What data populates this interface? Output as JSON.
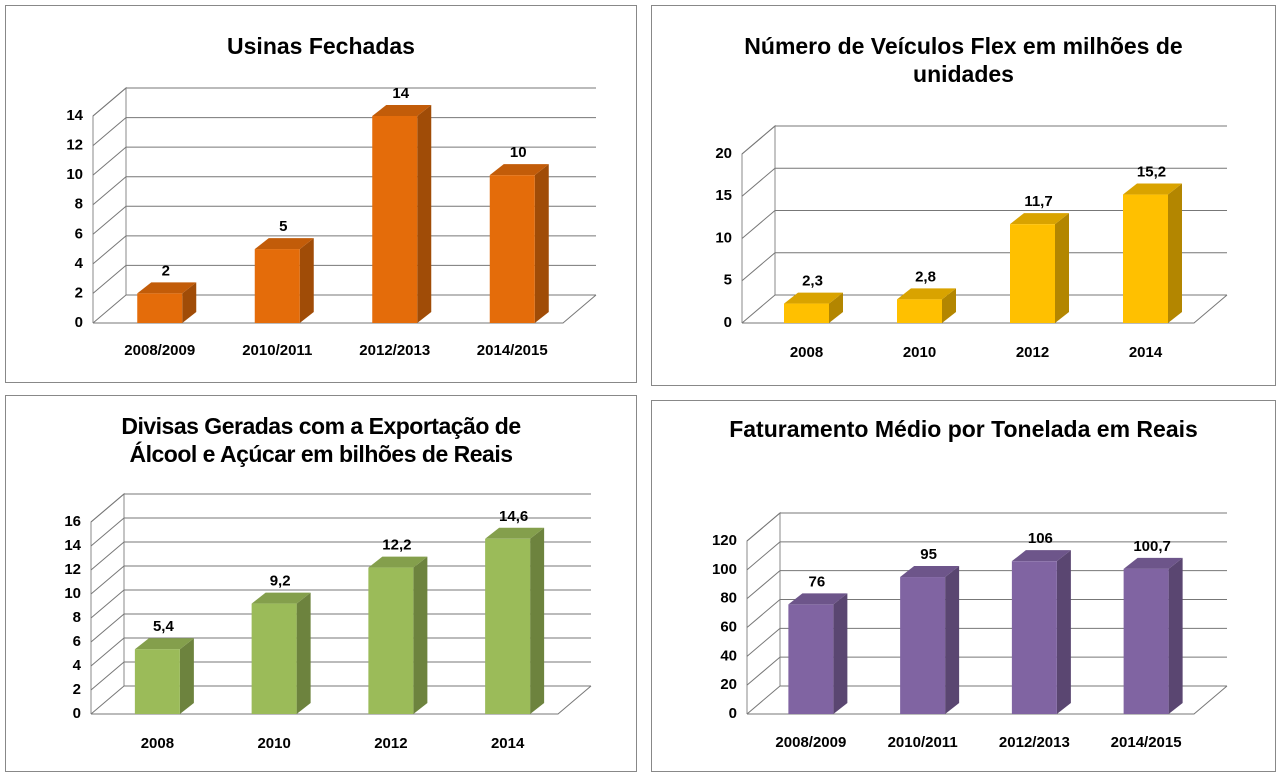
{
  "chart_data": [
    {
      "type": "bar",
      "title": "Usinas Fechadas",
      "categories": [
        "2008/2009",
        "2010/2011",
        "2012/2013",
        "2014/2015"
      ],
      "values": [
        2,
        5,
        14,
        10
      ],
      "color": "#e46c0a",
      "ylim": [
        0,
        14
      ],
      "yticks": [
        0,
        2,
        4,
        6,
        8,
        10,
        12,
        14
      ],
      "grid": true
    },
    {
      "type": "bar",
      "title": "Número de Veículos Flex em milhões de unidades",
      "categories": [
        "2008",
        "2010",
        "2012",
        "2014"
      ],
      "values": [
        2.3,
        2.8,
        11.7,
        15.2
      ],
      "value_labels": [
        "2,3",
        "2,8",
        "11,7",
        "15,2"
      ],
      "color": "#ffc000",
      "ylim": [
        0,
        20
      ],
      "yticks": [
        0,
        5,
        10,
        15,
        20
      ],
      "grid": true
    },
    {
      "type": "bar",
      "title": "Divisas Geradas com a Exportação de Álcool e Açúcar em bilhões de Reais",
      "categories": [
        "2008",
        "2010",
        "2012",
        "2014"
      ],
      "values": [
        5.4,
        9.2,
        12.2,
        14.6
      ],
      "value_labels": [
        "5,4",
        "9,2",
        "12,2",
        "14,6"
      ],
      "color": "#9bbb59",
      "ylim": [
        0,
        16
      ],
      "yticks": [
        0,
        2,
        4,
        6,
        8,
        10,
        12,
        14,
        16
      ],
      "grid": true
    },
    {
      "type": "bar",
      "title": "Faturamento Médio por Tonelada em Reais",
      "categories": [
        "2008/2009",
        "2010/2011",
        "2012/2013",
        "2014/2015"
      ],
      "values": [
        76,
        95,
        106,
        100.7
      ],
      "value_labels": [
        "76",
        "95",
        "106",
        "100,7"
      ],
      "color": "#8064a2",
      "ylim": [
        0,
        120
      ],
      "yticks": [
        0,
        20,
        40,
        60,
        80,
        100,
        120
      ],
      "grid": true
    }
  ]
}
